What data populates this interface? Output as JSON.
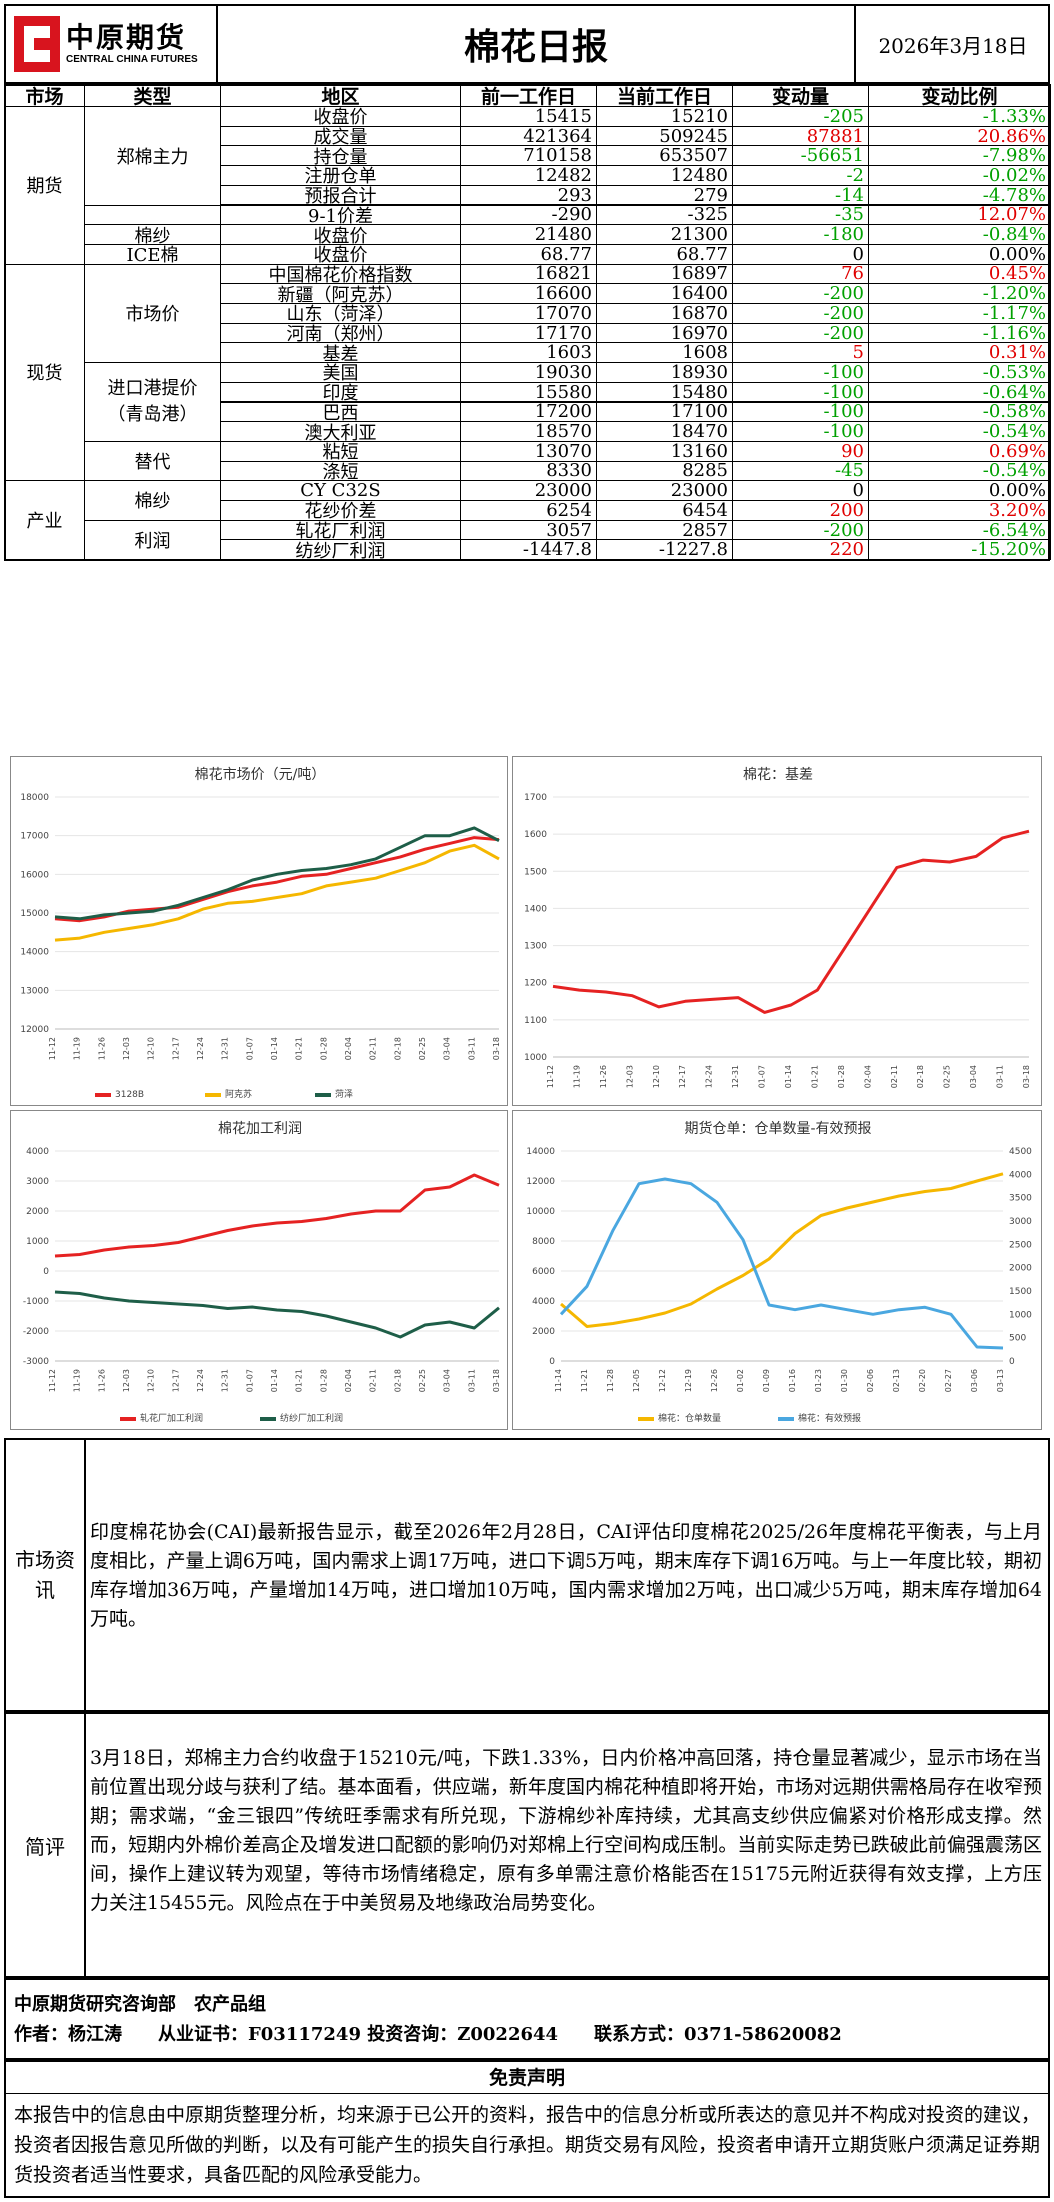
{
  "header": {
    "logo_cn": "中原期货",
    "logo_en": "CENTRAL CHINA FUTURES",
    "title": "棉花日报",
    "date": "2026年3月18日"
  },
  "table": {
    "columns": [
      "市场",
      "类型",
      "地区",
      "前一工作日",
      "当前工作日",
      "变动量",
      "变动比例"
    ],
    "markets": {
      "futures": "期货",
      "spot": "现货",
      "industry": "产业"
    },
    "groups": {
      "zhengmian": "郑棉主力",
      "mianSha1": "棉纱",
      "ice": "ICE棉",
      "marketPrice": "市场价",
      "importPort": "进口港提价（青岛港）",
      "substitute": "替代",
      "mianSha2": "棉纱",
      "profit": "利润"
    },
    "rows": [
      {
        "region": "收盘价",
        "prev": "15415",
        "curr": "15210",
        "chg": "-205",
        "pct": "-1.33%",
        "dir": "down"
      },
      {
        "region": "成交量",
        "prev": "421364",
        "curr": "509245",
        "chg": "87881",
        "pct": "20.86%",
        "dir": "up"
      },
      {
        "region": "持仓量",
        "prev": "710158",
        "curr": "653507",
        "chg": "-56651",
        "pct": "-7.98%",
        "dir": "down"
      },
      {
        "region": "注册仓单",
        "prev": "12482",
        "curr": "12480",
        "chg": "-2",
        "pct": "-0.02%",
        "dir": "down"
      },
      {
        "region": "预报合计",
        "prev": "293",
        "curr": "279",
        "chg": "-14",
        "pct": "-4.78%",
        "dir": "down"
      },
      {
        "region": "9-1价差",
        "prev": "-290",
        "curr": "-325",
        "chg": "-35",
        "pct": "12.07%",
        "dir": "mix"
      },
      {
        "region": "收盘价",
        "prev": "21480",
        "curr": "21300",
        "chg": "-180",
        "pct": "-0.84%",
        "dir": "down"
      },
      {
        "region": "收盘价",
        "prev": "68.77",
        "curr": "68.77",
        "chg": "0",
        "pct": "0.00%",
        "dir": "flat"
      },
      {
        "region": "中国棉花价格指数",
        "prev": "16821",
        "curr": "16897",
        "chg": "76",
        "pct": "0.45%",
        "dir": "up"
      },
      {
        "region": "新疆（阿克苏）",
        "prev": "16600",
        "curr": "16400",
        "chg": "-200",
        "pct": "-1.20%",
        "dir": "down"
      },
      {
        "region": "山东（菏泽）",
        "prev": "17070",
        "curr": "16870",
        "chg": "-200",
        "pct": "-1.17%",
        "dir": "down"
      },
      {
        "region": "河南（郑州）",
        "prev": "17170",
        "curr": "16970",
        "chg": "-200",
        "pct": "-1.16%",
        "dir": "down"
      },
      {
        "region": "基差",
        "prev": "1603",
        "curr": "1608",
        "chg": "5",
        "pct": "0.31%",
        "dir": "up"
      },
      {
        "region": "美国",
        "prev": "19030",
        "curr": "18930",
        "chg": "-100",
        "pct": "-0.53%",
        "dir": "down"
      },
      {
        "region": "印度",
        "prev": "15580",
        "curr": "15480",
        "chg": "-100",
        "pct": "-0.64%",
        "dir": "down"
      },
      {
        "region": "巴西",
        "prev": "17200",
        "curr": "17100",
        "chg": "-100",
        "pct": "-0.58%",
        "dir": "down"
      },
      {
        "region": "澳大利亚",
        "prev": "18570",
        "curr": "18470",
        "chg": "-100",
        "pct": "-0.54%",
        "dir": "down"
      },
      {
        "region": "粘短",
        "prev": "13070",
        "curr": "13160",
        "chg": "90",
        "pct": "0.69%",
        "dir": "up"
      },
      {
        "region": "涤短",
        "prev": "8330",
        "curr": "8285",
        "chg": "-45",
        "pct": "-0.54%",
        "dir": "down"
      },
      {
        "region": "CY C32S",
        "prev": "23000",
        "curr": "23000",
        "chg": "0",
        "pct": "0.00%",
        "dir": "flat"
      },
      {
        "region": "花纱价差",
        "prev": "6254",
        "curr": "6454",
        "chg": "200",
        "pct": "3.20%",
        "dir": "up"
      },
      {
        "region": "轧花厂利润",
        "prev": "3057",
        "curr": "2857",
        "chg": "-200",
        "pct": "-6.54%",
        "dir": "down"
      },
      {
        "region": "纺纱厂利润",
        "prev": "-1447.8",
        "curr": "-1227.8",
        "chg": "220",
        "pct": "-15.20%",
        "dir": "mixr"
      }
    ]
  },
  "colors": {
    "up": "#e00000",
    "down": "#00a000",
    "red_series": "#e52222",
    "yellow_series": "#f5b700",
    "green_series": "#1e5e48",
    "blue_series": "#4aa7e0"
  },
  "chart_data": [
    {
      "type": "line",
      "title": "棉花市场价（元/吨）",
      "x_ticks": [
        "11-12",
        "11-19",
        "11-26",
        "12-03",
        "12-10",
        "12-17",
        "12-24",
        "12-31",
        "01-07",
        "01-14",
        "01-21",
        "01-28",
        "02-04",
        "02-11",
        "02-18",
        "02-25",
        "03-04",
        "03-11",
        "03-18"
      ],
      "ylim": [
        12000,
        18000
      ],
      "y_ticks": [
        12000,
        13000,
        14000,
        15000,
        16000,
        17000,
        18000
      ],
      "legend_position": "bottom",
      "series": [
        {
          "name": "3128B",
          "values": [
            14850,
            14800,
            14900,
            15050,
            15100,
            15150,
            15350,
            15550,
            15700,
            15800,
            15950,
            16000,
            16150,
            16300,
            16450,
            16650,
            16800,
            16950,
            16897
          ]
        },
        {
          "name": "阿克苏",
          "values": [
            14300,
            14350,
            14500,
            14600,
            14700,
            14850,
            15100,
            15250,
            15300,
            15400,
            15500,
            15700,
            15800,
            15900,
            16100,
            16300,
            16600,
            16750,
            16400
          ]
        },
        {
          "name": "菏泽",
          "values": [
            14900,
            14850,
            14950,
            15000,
            15050,
            15200,
            15400,
            15600,
            15850,
            16000,
            16100,
            16150,
            16250,
            16400,
            16700,
            17000,
            17000,
            17200,
            16870
          ]
        }
      ]
    },
    {
      "type": "line",
      "title": "棉花：基差",
      "x_ticks": [
        "11-12",
        "11-19",
        "11-26",
        "12-03",
        "12-10",
        "12-17",
        "12-24",
        "12-31",
        "01-07",
        "01-14",
        "01-21",
        "01-28",
        "02-04",
        "02-11",
        "02-18",
        "02-25",
        "03-04",
        "03-11",
        "03-18"
      ],
      "ylim": [
        1000,
        1700
      ],
      "y_ticks": [
        1000,
        1100,
        1200,
        1300,
        1400,
        1500,
        1600,
        1700
      ],
      "series": [
        {
          "name": "基差",
          "values": [
            1190,
            1180,
            1175,
            1165,
            1135,
            1150,
            1155,
            1160,
            1120,
            1140,
            1180,
            1290,
            1400,
            1510,
            1530,
            1525,
            1540,
            1590,
            1608
          ]
        }
      ]
    },
    {
      "type": "line",
      "title": "棉花加工利润",
      "x_ticks": [
        "11-12",
        "11-19",
        "11-26",
        "12-03",
        "12-10",
        "12-17",
        "12-24",
        "12-31",
        "01-07",
        "01-14",
        "01-21",
        "01-28",
        "02-04",
        "02-11",
        "02-18",
        "02-25",
        "03-04",
        "03-11",
        "03-18"
      ],
      "ylim": [
        -3000,
        4000
      ],
      "y_ticks": [
        -3000,
        -2000,
        -1000,
        0,
        1000,
        2000,
        3000,
        4000
      ],
      "legend_position": "bottom",
      "series": [
        {
          "name": "轧花厂加工利润",
          "values": [
            500,
            550,
            700,
            800,
            850,
            950,
            1150,
            1350,
            1500,
            1600,
            1650,
            1750,
            1900,
            2000,
            2000,
            2700,
            2800,
            3200,
            2857
          ]
        },
        {
          "name": "纺纱厂加工利润",
          "values": [
            -700,
            -750,
            -900,
            -1000,
            -1050,
            -1100,
            -1150,
            -1250,
            -1200,
            -1300,
            -1350,
            -1500,
            -1700,
            -1900,
            -2200,
            -1800,
            -1700,
            -1900,
            -1228
          ]
        }
      ]
    },
    {
      "type": "line",
      "title": "期货仓单：仓单数量-有效预报",
      "x_ticks": [
        "11-14",
        "11-21",
        "11-28",
        "12-05",
        "12-12",
        "12-19",
        "12-26",
        "01-02",
        "01-09",
        "01-16",
        "01-23",
        "01-30",
        "02-06",
        "02-13",
        "02-20",
        "02-27",
        "03-06",
        "03-13"
      ],
      "ylim_left": [
        0,
        14000
      ],
      "ylim_right": [
        0,
        4500
      ],
      "y_ticks_left": [
        0,
        2000,
        4000,
        6000,
        8000,
        10000,
        12000,
        14000
      ],
      "y_ticks_right": [
        0,
        500,
        1000,
        1500,
        2000,
        2500,
        3000,
        3500,
        4000,
        4500
      ],
      "legend_position": "bottom",
      "series": [
        {
          "name": "棉花：仓单数量",
          "axis": "left",
          "values": [
            3800,
            2300,
            2500,
            2800,
            3200,
            3800,
            4800,
            5700,
            6800,
            8500,
            9700,
            10200,
            10600,
            11000,
            11300,
            11500,
            12000,
            12480
          ]
        },
        {
          "name": "棉花：有效预报",
          "axis": "right",
          "values": [
            1000,
            1600,
            2800,
            3800,
            3900,
            3800,
            3400,
            2600,
            1200,
            1100,
            1200,
            1100,
            1000,
            1100,
            1150,
            1000,
            300,
            279
          ]
        }
      ]
    }
  ],
  "market_news": {
    "label": "市场资讯",
    "text": "印度棉花协会(CAI)最新报告显示，截至2026年2月28日，CAI评估印度棉花2025/26年度棉花平衡表，与上月度相比，产量上调6万吨，国内需求上调17万吨，进口下调5万吨，期末库存下调16万吨。与上一年度比较，期初库存增加36万吨，产量增加14万吨，进口增加10万吨，国内需求增加2万吨，出口减少5万吨，期末库存增加64万吨。"
  },
  "commentary": {
    "label": "简评",
    "text": "3月18日，郑棉主力合约收盘于15210元/吨，下跌1.33%，日内价格冲高回落，持仓量显著减少，显示市场在当前位置出现分歧与获利了结。基本面看，供应端，新年度国内棉花种植即将开始，市场对远期供需格局存在收窄预期；需求端，“金三银四”传统旺季需求有所兑现，下游棉纱补库持续，尤其高支纱供应偏紧对价格形成支撑。然而，短期内外棉价差高企及增发进口配额的影响仍对郑棉上行空间构成压制。当前实际走势已跌破此前偏强震荡区间，操作上建议转为观望，等待市场情绪稳定，原有多单需注意价格能否在15175元附近获得有效支撑，上方压力关注15455元。风险点在于中美贸易及地缘政治局势变化。"
  },
  "footer": {
    "dept": "中原期货研究咨询部　农产品组",
    "author": "作者：杨江涛　　从业证书：F03117249 投资咨询：Z0022644　　联系方式：0371-58620082"
  },
  "disclaimer": {
    "title": "免责声明",
    "text": "本报告中的信息由中原期货整理分析，均来源于已公开的资料，报告中的信息分析或所表达的意见并不构成对投资的建议，投资者因报告意见所做的判断，以及有可能产生的损失自行承担。期货交易有风险，投资者申请开立期货账户须满足证券期货投资者适当性要求，具备匹配的风险承受能力。"
  }
}
